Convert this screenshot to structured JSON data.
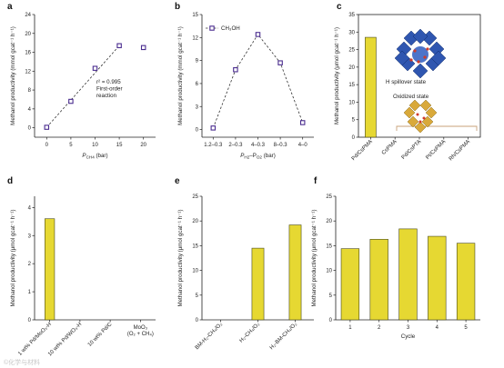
{
  "figure": {
    "watermark": "©化学与材料"
  },
  "chart_data": [
    {
      "id": "a",
      "panel_label": "a",
      "type": "scatter",
      "x": [
        0,
        5,
        10,
        15,
        20
      ],
      "y": [
        0.1,
        5.6,
        12.6,
        17.4,
        17.0
      ],
      "xlabel_main": "P",
      "xlabel_sub": "CH4",
      "xlabel_unit": " (bar)",
      "ylabel": "Methanol productivity (mmol gcat⁻¹ h⁻¹)",
      "xticks": [
        0,
        5,
        10,
        15,
        20
      ],
      "yticks": [
        0,
        4,
        8,
        12,
        16,
        20,
        24
      ],
      "xlim": [
        -2.5,
        22.5
      ],
      "ylim": [
        -2,
        24
      ],
      "fit_line": {
        "x": [
          0,
          15
        ],
        "y": [
          0.1,
          17.4
        ]
      },
      "annotation_lines": [
        "r² = 0.995",
        "First-order",
        "reaction"
      ]
    },
    {
      "id": "b",
      "panel_label": "b",
      "type": "line",
      "categories": [
        "1.2–0.3",
        "2–0.3",
        "4–0.3",
        "8–0.3",
        "4–0"
      ],
      "values": [
        0.2,
        7.8,
        12.4,
        8.7,
        0.9
      ],
      "series": [
        {
          "name": "CH₃OH",
          "values": [
            0.2,
            7.8,
            12.4,
            8.7,
            0.9
          ]
        }
      ],
      "xlabel_main": "P",
      "xlabel_sub": "H2",
      "xlabel_mid": "–P",
      "xlabel_sub2": "O2",
      "xlabel_unit": " (bar)",
      "ylabel": "Methanol productivity (mmol gcat⁻¹ h⁻¹)",
      "yticks": [
        0,
        3,
        6,
        9,
        12,
        15
      ],
      "ylim": [
        -1,
        15
      ]
    },
    {
      "id": "c",
      "panel_label": "c",
      "type": "bar",
      "categories": [
        "Pd/CsPMA",
        "CsPMA",
        "Pd/CsPTA",
        "Pt/CsPMA",
        "Rh/CsPMA"
      ],
      "values": [
        28.5,
        0,
        0,
        0,
        0
      ],
      "ylabel": "Methanol productivity (μmol gcat⁻¹ h⁻¹)",
      "yticks": [
        0,
        5,
        10,
        15,
        20,
        25,
        30,
        35
      ],
      "ylim": [
        0,
        35
      ],
      "annotation_top": "H spillover state",
      "annotation_bottom": "Oxidized state"
    },
    {
      "id": "d",
      "panel_label": "d",
      "type": "bar",
      "categories": [
        "1 wt% Pd/MoO₃-H",
        "10 wt% Pd/WO₃-H",
        "10 wt% Pd/C",
        "MoO₃ (O₂ + CH₄)"
      ],
      "values": [
        3.6,
        0,
        0,
        0
      ],
      "ylabel": "Methanol productivity (μmol gcat⁻¹ h⁻¹)",
      "yticks": [
        0,
        1,
        2,
        3,
        4
      ],
      "ylim": [
        0,
        4.4
      ]
    },
    {
      "id": "e",
      "panel_label": "e",
      "type": "bar",
      "categories": [
        "BM-H₂-CH₄/O₂",
        "H₂-CH₄/O₂",
        "H₂-BM-CH₄/O₂"
      ],
      "values": [
        0,
        14.5,
        19.2
      ],
      "ylabel": "Methanol productivity (μmol gcat⁻¹ h⁻¹)",
      "yticks": [
        0,
        5,
        10,
        15,
        20,
        25
      ],
      "ylim": [
        0,
        25
      ]
    },
    {
      "id": "f",
      "panel_label": "f",
      "type": "bar",
      "categories": [
        "1",
        "2",
        "3",
        "4",
        "5"
      ],
      "values": [
        14.4,
        16.3,
        18.4,
        16.9,
        15.5
      ],
      "xlabel": "Cycle",
      "ylabel": "Methanol productivity (μmol gcat⁻¹ h⁻¹)",
      "yticks": [
        0,
        5,
        10,
        15,
        20,
        25
      ],
      "ylim": [
        0,
        25
      ]
    }
  ],
  "colors": {
    "bar_fill": "#e6d832",
    "bar_stroke": "#4a4a1a",
    "marker_stroke": "#4a2c8f",
    "cluster_blue": "#2f56b0",
    "cluster_gold": "#d9a93a",
    "cluster_red": "#d03a2a"
  },
  "icons": {
    "h_spillover": "blue-polyoxometalate-cluster-icon",
    "oxidized": "gold-polyoxometalate-cluster-icon"
  }
}
